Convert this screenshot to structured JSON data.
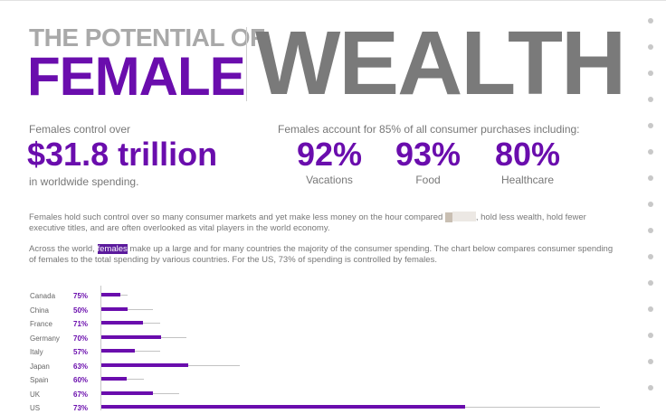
{
  "header": {
    "title_top": "THE POTENTIAL OF",
    "title_female": "FEMALE",
    "title_wealth": "WEALTH"
  },
  "stat_control": {
    "intro": "Females control over",
    "amount": "$31.8 trillion",
    "outro": "in worldwide spending."
  },
  "stat_purchases": {
    "intro": "Females account for 85% of all consumer purchases including:",
    "items": [
      {
        "value": "92%",
        "label": "Vacations"
      },
      {
        "value": "93%",
        "label": "Food"
      },
      {
        "value": "80%",
        "label": "Healthcare"
      }
    ]
  },
  "paragraph1": {
    "before": "Females hold such control over so many consumer markets and yet make less money on the hour compared ",
    "highlight": "to",
    "after": ", hold less wealth, hold fewer executive titles, and are often overlooked as vital players in the world economy."
  },
  "paragraph2": {
    "before": "Across the world, ",
    "highlight": "females",
    "after": " make up a large and for many countries the majority of the consumer spending. The chart below compares consumer spending of females to the total spending by various countries. For the US, 73% of spending is controlled by females."
  },
  "chart_data": {
    "type": "bar",
    "categories": [
      "Canada",
      "China",
      "France",
      "Germany",
      "Italy",
      "Japan",
      "Spain",
      "UK",
      "US"
    ],
    "female_share_labels": [
      "75%",
      "50%",
      "71%",
      "70%",
      "57%",
      "63%",
      "60%",
      "67%",
      "73%"
    ],
    "series": [
      {
        "values": [
          1.4,
          2.8,
          3.2,
          4.6,
          3.2,
          7.5,
          2.3,
          4.2,
          27.0
        ]
      },
      {
        "values": [
          1.05,
          1.4,
          2.27,
          3.22,
          1.82,
          4.73,
          1.38,
          2.81,
          19.7
        ]
      }
    ],
    "colors": {
      "female": "#6a0dad",
      "total": "#c3c3c3"
    }
  }
}
